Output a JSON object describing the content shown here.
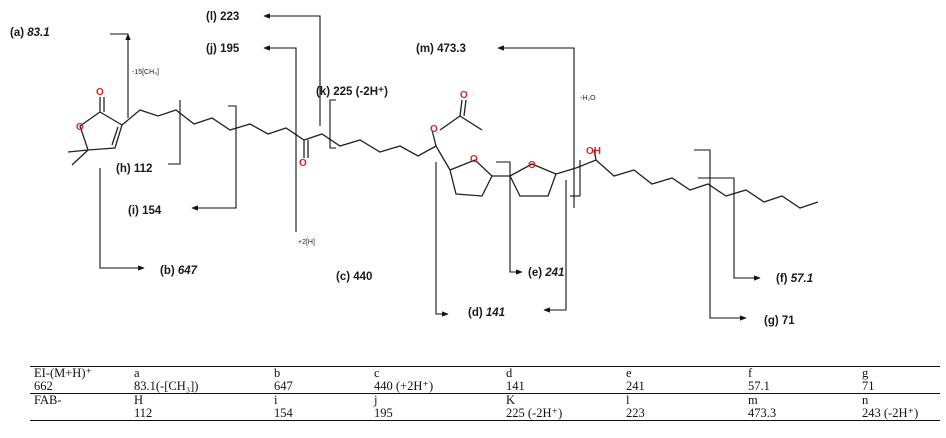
{
  "fragments": {
    "a": {
      "letter": "(a)",
      "value": "83.1"
    },
    "b": {
      "letter": "(b)",
      "value": "647"
    },
    "c": {
      "letter": "(c)",
      "value": "440"
    },
    "d": {
      "letter": "(d)",
      "value": "141"
    },
    "e": {
      "letter": "(e)",
      "value": "241"
    },
    "f": {
      "letter": "(f)",
      "value": "57.1"
    },
    "g": {
      "letter": "(g)",
      "value": "71"
    },
    "h": {
      "letter": "(h)",
      "value": "112"
    },
    "i": {
      "letter": "(i)",
      "value": "154"
    },
    "j": {
      "letter": "(j)",
      "value": "195"
    },
    "k": {
      "letter": "(k)",
      "value": "225 (-2H⁺)"
    },
    "l": {
      "letter": "(l)",
      "value": "223"
    },
    "m": {
      "letter": "(m)",
      "value": "473.3"
    }
  },
  "annotations": {
    "ch3_loss": "-15[CH₃]",
    "h2o_loss": "-H₂O",
    "plus_2h": "+2[H]"
  },
  "atoms": {
    "oxygen": "O",
    "hydroxyl": "OH"
  },
  "table": {
    "rows": [
      {
        "cls": "hd",
        "cells": [
          "EI-(M+H)⁺",
          "a",
          "b",
          "c",
          "d",
          "e",
          "f",
          "g"
        ]
      },
      {
        "cls": "",
        "cells": [
          "662",
          "83.1(-[CH₃])",
          "647",
          "440 (+2H⁺)",
          "141",
          "241",
          "57.1",
          "71"
        ]
      },
      {
        "cls": "hd",
        "cells": [
          "FAB-",
          "H",
          "i",
          "j",
          "K",
          "l",
          "m",
          "n"
        ]
      },
      {
        "cls": "last",
        "cells": [
          "",
          "112",
          "154",
          "195",
          "225 (-2H⁺)",
          "223",
          "473.3",
          "243 (-2H⁺)"
        ]
      }
    ]
  }
}
